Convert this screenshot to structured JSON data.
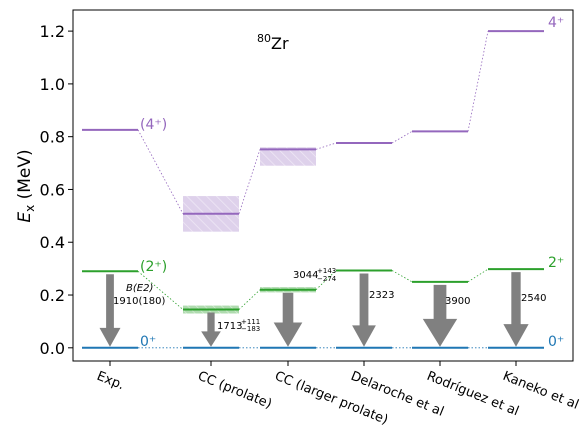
{
  "chart_data": {
    "type": "level-scheme",
    "title_prefix": "80",
    "title_main": "Zr",
    "ylabel_italic": "E",
    "ylabel_sub": "x",
    "ylabel_unit": " (MeV)",
    "ylim": [
      -0.05,
      1.28
    ],
    "yticks": [
      "0.0",
      "0.2",
      "0.4",
      "0.6",
      "0.8",
      "1.0",
      "1.2"
    ],
    "ytick_values": [
      0.0,
      0.2,
      0.4,
      0.6,
      0.8,
      1.0,
      1.2
    ],
    "categories": [
      "Exp.",
      "CC (prolate)",
      "CC (larger prolate)",
      "Delaroche et al",
      "Rodríguez et al",
      "Kaneko et al"
    ],
    "colors": {
      "ground": "#1f77b4",
      "two_plus": "#2ca02c",
      "four_plus": "#9467bd",
      "arrow": "#808080"
    },
    "levels": [
      {
        "category": "Exp.",
        "e0": 0.0,
        "e2": 0.29,
        "e4": 0.826
      },
      {
        "category": "CC (prolate)",
        "e0": 0.0,
        "e2": 0.145,
        "e2_band": [
          0.13,
          0.16
        ],
        "e4": 0.508,
        "e4_band": [
          0.44,
          0.575
        ]
      },
      {
        "category": "CC (larger prolate)",
        "e0": 0.0,
        "e2": 0.22,
        "e2_band": [
          0.21,
          0.23
        ],
        "e4": 0.752,
        "e4_band": [
          0.69,
          0.76
        ]
      },
      {
        "category": "Delaroche et al",
        "e0": 0.0,
        "e2": 0.293,
        "e4": 0.776
      },
      {
        "category": "Rodríguez et al",
        "e0": 0.0,
        "e2": 0.25,
        "e4": 0.82
      },
      {
        "category": "Kaneko et al",
        "e0": 0.0,
        "e2": 0.298,
        "e4": 1.2
      }
    ],
    "be2": [
      {
        "category": "Exp.",
        "value": 1910,
        "label_top": "B(E2)",
        "label_bottom": "1910(180)"
      },
      {
        "category": "CC (prolate)",
        "value": 1713,
        "label_main": "1713",
        "err_plus": "+111",
        "err_minus": "−183"
      },
      {
        "category": "CC (larger prolate)",
        "value": 3044,
        "label_main": "3044",
        "err_plus": "+143",
        "err_minus": "−274"
      },
      {
        "category": "Delaroche et al",
        "value": 2323,
        "label": "2323"
      },
      {
        "category": "Rodríguez et al",
        "value": 3900,
        "label": "3900"
      },
      {
        "category": "Kaneko et al",
        "value": 2540,
        "label": "2540"
      }
    ],
    "spin_labels": {
      "exp_four": "(4⁺)",
      "exp_two": "(2⁺)",
      "exp_zero": "0⁺",
      "kaneko_four": "4⁺",
      "kaneko_two": "2⁺",
      "kaneko_zero": "0⁺"
    }
  }
}
